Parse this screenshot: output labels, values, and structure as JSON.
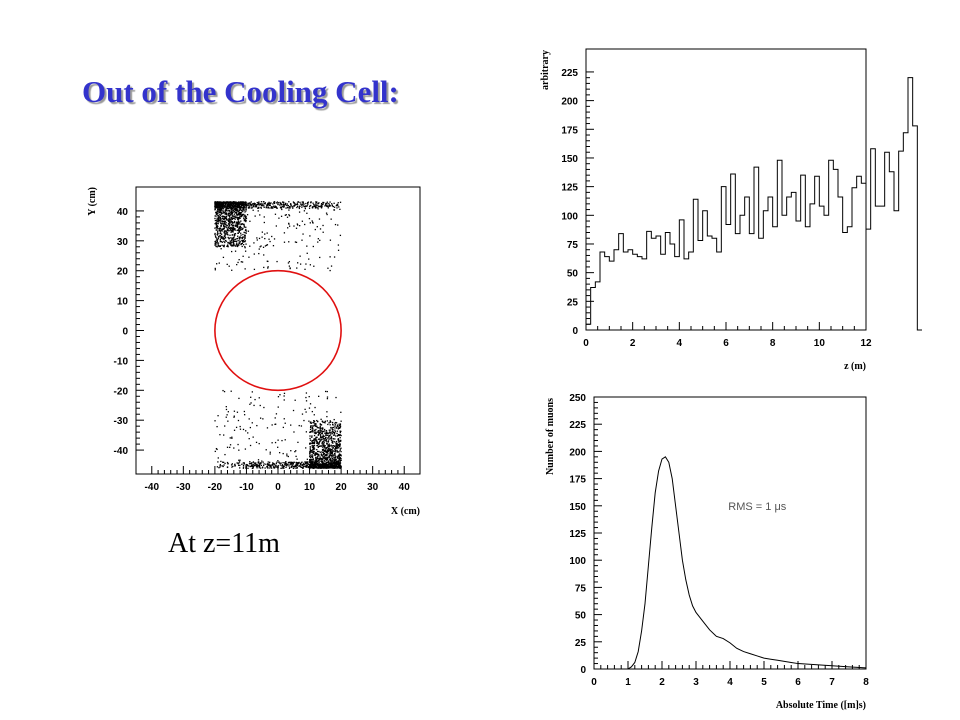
{
  "slide": {
    "title": "Out of the Cooling Cell:",
    "caption": "At z=11m"
  },
  "chart_data": [
    {
      "id": "scatter",
      "type": "scatter",
      "xlabel": "X (cm)",
      "ylabel": "Y (cm)",
      "xlim": [
        -45,
        45
      ],
      "ylim": [
        -48,
        48
      ],
      "x_ticks": [
        -40,
        -30,
        -20,
        -10,
        0,
        10,
        20,
        30,
        40
      ],
      "y_ticks": [
        -40,
        -30,
        -20,
        -10,
        0,
        10,
        20,
        30,
        40
      ],
      "circle": {
        "center": [
          0,
          0
        ],
        "radius": 20,
        "color": "#e01010"
      },
      "point_color": "#000000",
      "clusters": [
        {
          "x_range": [
            -20,
            20
          ],
          "y_range": [
            20,
            43
          ],
          "dense_x": [
            -20,
            -10
          ],
          "dense_y": [
            28,
            43
          ],
          "edge_y": 42
        },
        {
          "x_range": [
            -20,
            20
          ],
          "y_range": [
            -46,
            -20
          ],
          "dense_x": [
            10,
            20
          ],
          "dense_y": [
            -46,
            -30
          ],
          "edge_y": -45
        }
      ]
    },
    {
      "id": "z-hist",
      "type": "bar",
      "xlabel": "z (m)",
      "ylabel": "arbitrary",
      "xlim": [
        0,
        12
      ],
      "ylim": [
        0,
        245
      ],
      "x_ticks": [
        0,
        2,
        4,
        6,
        8,
        10,
        12
      ],
      "y_ticks": [
        0,
        25,
        50,
        75,
        100,
        125,
        150,
        175,
        200,
        225
      ],
      "bin_width": 0.2,
      "x_start": 0,
      "values": [
        5,
        37,
        42,
        68,
        64,
        60,
        70,
        84,
        68,
        70,
        66,
        64,
        62,
        86,
        80,
        82,
        66,
        85,
        75,
        64,
        96,
        62,
        68,
        114,
        78,
        104,
        82,
        80,
        68,
        125,
        92,
        136,
        84,
        100,
        116,
        84,
        142,
        80,
        104,
        116,
        90,
        148,
        100,
        116,
        120,
        95,
        135,
        90,
        110,
        134,
        108,
        100,
        148,
        140,
        116,
        85,
        90,
        124,
        134,
        128,
        88,
        158,
        108,
        108,
        155,
        138,
        104,
        156,
        172,
        220,
        178,
        0
      ]
    },
    {
      "id": "time-dist",
      "type": "line",
      "xlabel": "Absolute Time ([m]s)",
      "ylabel": "Number of muons",
      "annotation": "RMS = 1 μs",
      "xlim": [
        0,
        8
      ],
      "ylim": [
        0,
        250
      ],
      "x_ticks": [
        0,
        1,
        2,
        3,
        4,
        5,
        6,
        7,
        8
      ],
      "y_ticks": [
        0,
        25,
        50,
        75,
        100,
        125,
        150,
        175,
        200,
        225,
        250
      ],
      "x": [
        1.0,
        1.1,
        1.2,
        1.3,
        1.4,
        1.5,
        1.6,
        1.7,
        1.8,
        1.9,
        2.0,
        2.1,
        2.2,
        2.3,
        2.4,
        2.5,
        2.6,
        2.7,
        2.8,
        2.9,
        3.0,
        3.2,
        3.4,
        3.6,
        3.8,
        4.0,
        4.2,
        4.4,
        4.6,
        4.8,
        5.0,
        5.2,
        5.4,
        5.6,
        5.8,
        6.0,
        6.5,
        7.0,
        7.5,
        8.0
      ],
      "y": [
        0,
        2,
        6,
        16,
        35,
        60,
        95,
        130,
        162,
        182,
        193,
        195,
        190,
        175,
        150,
        125,
        100,
        82,
        68,
        58,
        52,
        44,
        36,
        30,
        28,
        24,
        19,
        16,
        14,
        12,
        10,
        9,
        8,
        7,
        6,
        5,
        4,
        3,
        2,
        1
      ]
    }
  ]
}
